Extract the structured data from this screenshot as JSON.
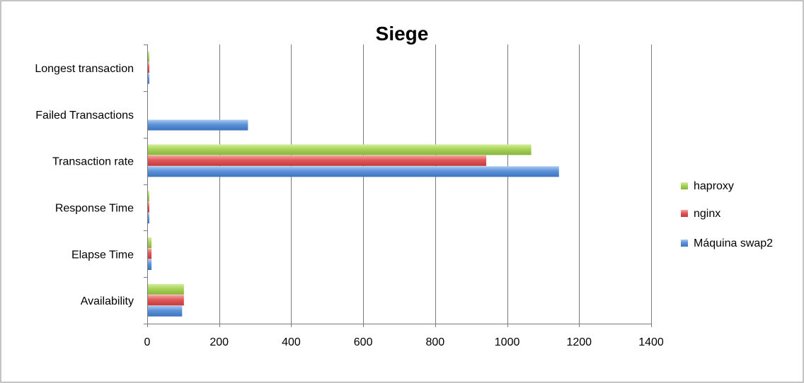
{
  "chart_data": {
    "type": "bar",
    "orientation": "horizontal",
    "title": "Siege",
    "xlabel": "",
    "ylabel": "",
    "xlim": [
      0,
      1400
    ],
    "xticks": [
      0,
      200,
      400,
      600,
      800,
      1000,
      1200,
      1400
    ],
    "grid": true,
    "legend_position": "right",
    "categories": [
      "Availability",
      "Elapse Time",
      "Response Time",
      "Transaction rate",
      "Failed Transactions",
      "Longest transaction"
    ],
    "series": [
      {
        "name": "haproxy",
        "color": "#a8d35a",
        "values": [
          100,
          10,
          2,
          1065,
          0,
          2
        ]
      },
      {
        "name": "nginx",
        "color": "#e0595a",
        "values": [
          100,
          10,
          2,
          940,
          0,
          2
        ]
      },
      {
        "name": "Máquina swap2",
        "color": "#5b92d8",
        "values": [
          95,
          10,
          2,
          1142,
          278,
          2
        ]
      }
    ]
  }
}
